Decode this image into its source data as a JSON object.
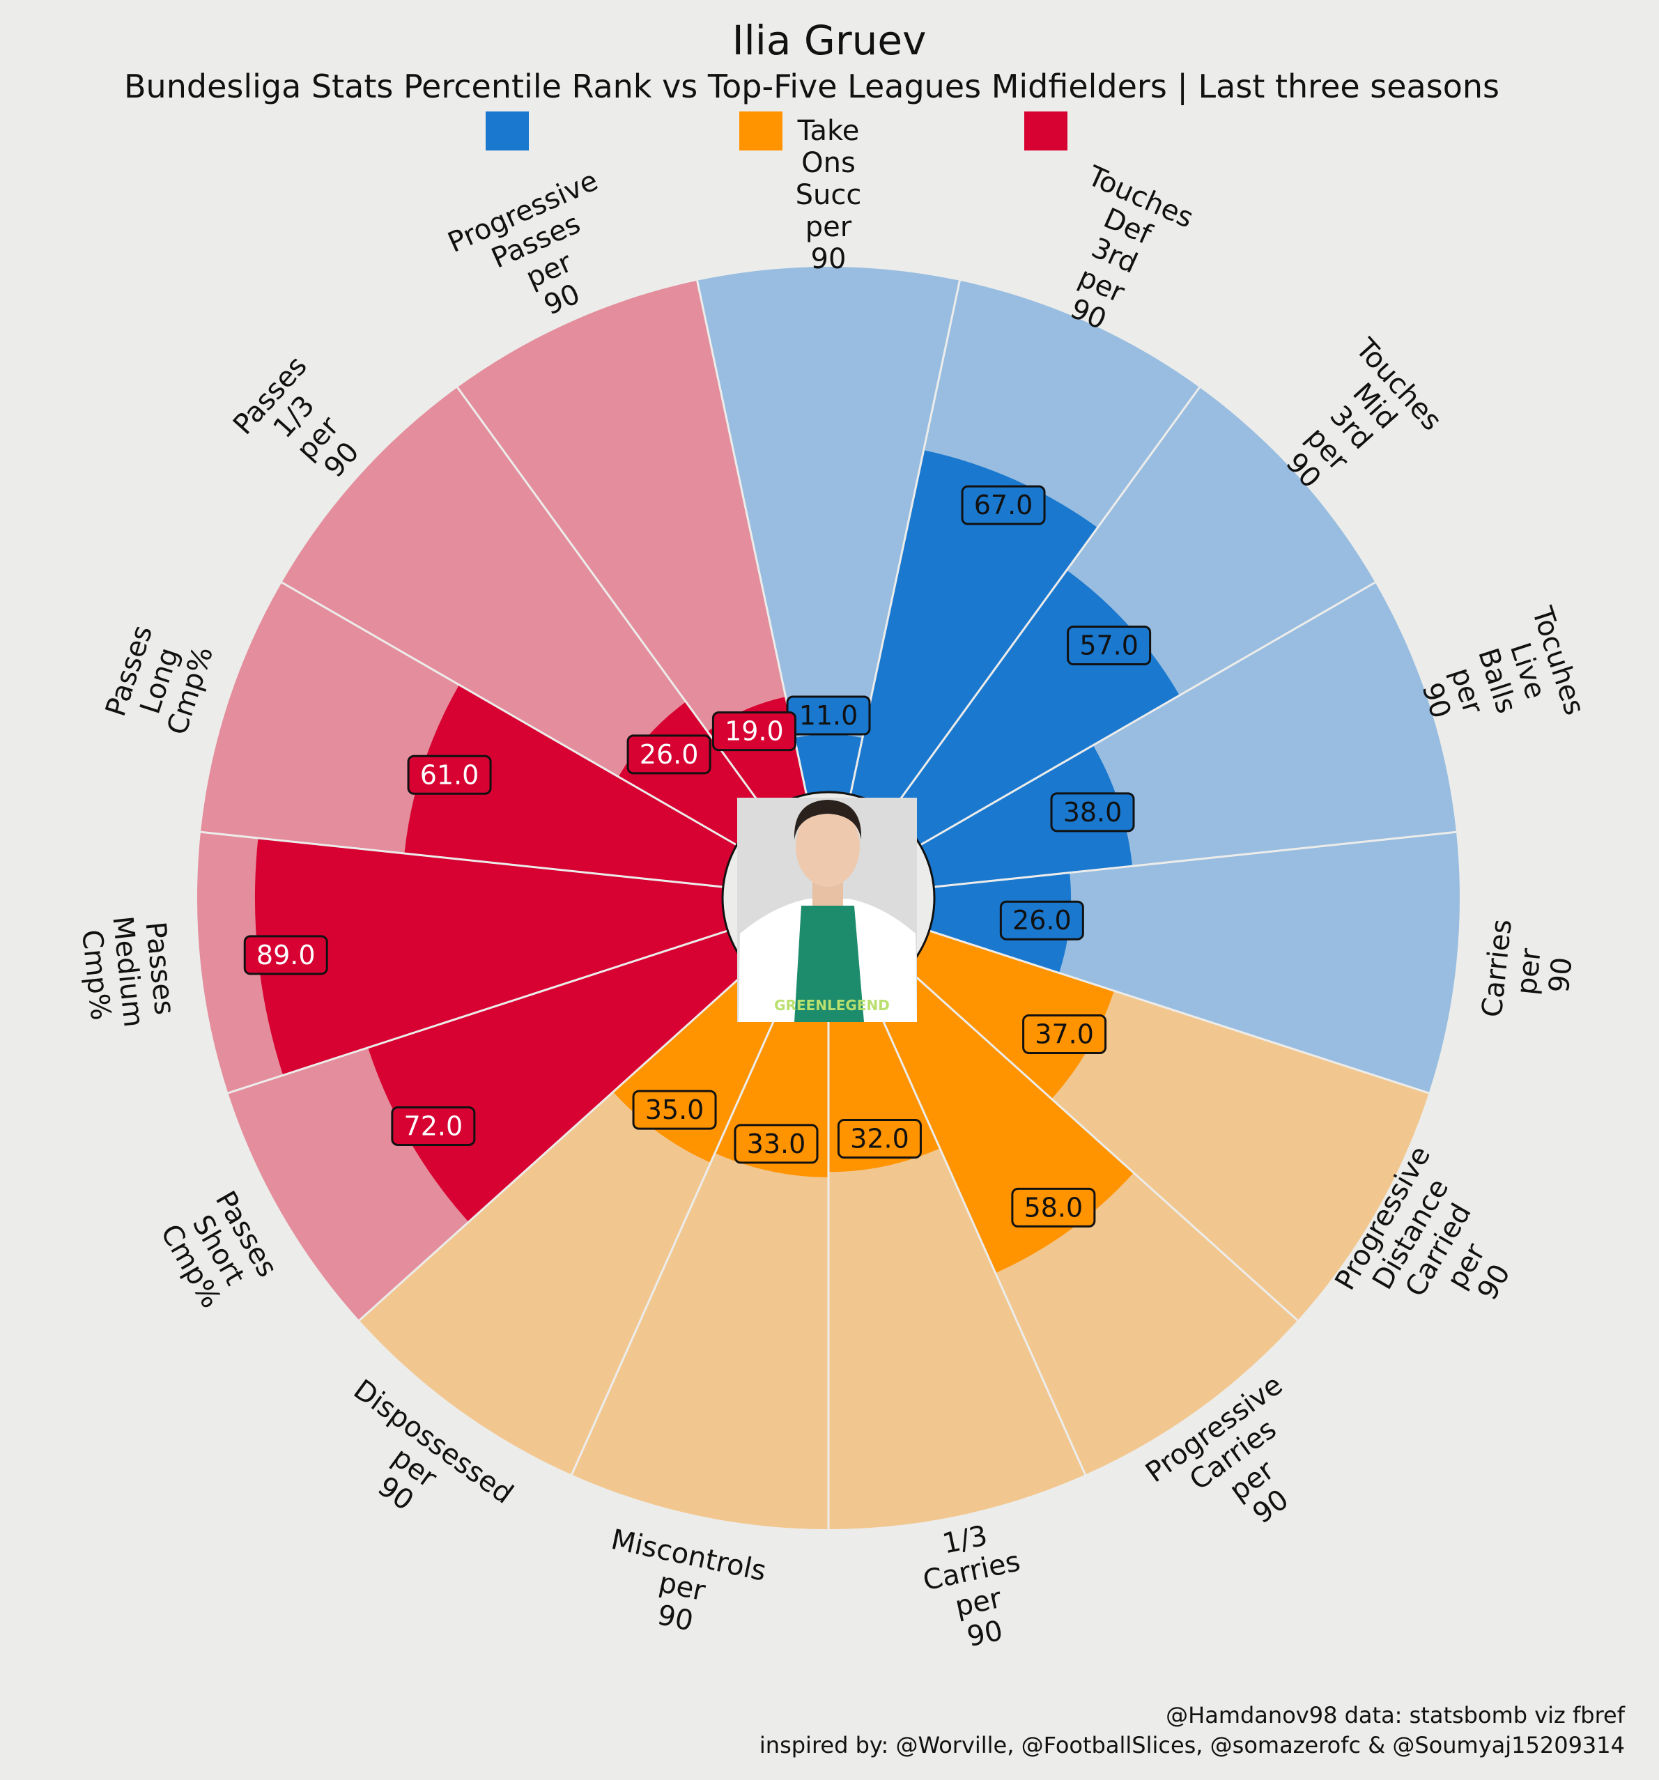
{
  "chart_data": {
    "type": "polar-bar",
    "title": "Ilia Gruev",
    "subtitle": "Bundesliga Stats Percentile Rank vs Top-Five Leagues Midfielders | Last three seasons",
    "legend": {
      "placement": "top-center",
      "entries": [
        {
          "label": "",
          "color": "#1a78cf"
        },
        {
          "label": "Take Ons Succ per 90",
          "color": "#ff9300"
        },
        {
          "label": "",
          "color": "#d70232"
        }
      ]
    },
    "rlim": [
      0,
      100
    ],
    "categories": [
      {
        "label": [
          "Take",
          "Ons",
          "Succ",
          "per",
          "90"
        ],
        "value": 11,
        "group": "possession"
      },
      {
        "label": [
          "Touches",
          "Def",
          "3rd",
          "per",
          "90"
        ],
        "value": 67,
        "group": "possession"
      },
      {
        "label": [
          "Touches",
          "Mid",
          "3rd",
          "per",
          "90"
        ],
        "value": 57,
        "group": "possession"
      },
      {
        "label": [
          "Tocuhes",
          "Live",
          "Balls",
          "per",
          "90"
        ],
        "value": 38,
        "group": "possession"
      },
      {
        "label": [
          "Carries",
          "per",
          "90"
        ],
        "value": 26,
        "group": "possession"
      },
      {
        "label": [
          "Progressive",
          "Distance",
          "Carried",
          "per",
          "90"
        ],
        "value": 37,
        "group": "carrying"
      },
      {
        "label": [
          "Progressive",
          "Carries",
          "per",
          "90"
        ],
        "value": 58,
        "group": "carrying"
      },
      {
        "label": [
          "1/3",
          "Carries",
          "per",
          "90"
        ],
        "value": 32,
        "group": "carrying"
      },
      {
        "label": [
          "Miscontrols",
          "per",
          "90"
        ],
        "value": 33,
        "group": "carrying"
      },
      {
        "label": [
          "Dispossessed",
          "per",
          "90"
        ],
        "value": 35,
        "group": "carrying"
      },
      {
        "label": [
          "Passes",
          "Short",
          "Cmp%"
        ],
        "value": 72,
        "group": "passing"
      },
      {
        "label": [
          "Passes",
          "Medium",
          "Cmp%"
        ],
        "value": 89,
        "group": "passing"
      },
      {
        "label": [
          "Passes",
          "Long",
          "Cmp%"
        ],
        "value": 61,
        "group": "passing"
      },
      {
        "label": [
          "Passes",
          "1/3",
          "per",
          "90"
        ],
        "value": 26,
        "group": "passing"
      },
      {
        "label": [
          "Progressive",
          "Passes",
          "per",
          "90"
        ],
        "value": 19,
        "group": "passing"
      }
    ],
    "groups": {
      "possession": {
        "color": "#1a78cf",
        "light": "#98bde0",
        "text": "#111111"
      },
      "carrying": {
        "color": "#ff9300",
        "light": "#f2c78f",
        "text": "#111111"
      },
      "passing": {
        "color": "#d70232",
        "light": "#e48d9c",
        "text": "#ffffff"
      }
    }
  },
  "credits": {
    "line1": "@Hamdanov98 data: statsbomb viz fbref",
    "line2": "inspired by: @Worville, @FootballSlices, @somazerofc & @Soumyaj15209314"
  },
  "player_photo": {
    "kit_text": "GREENLEGEND"
  }
}
